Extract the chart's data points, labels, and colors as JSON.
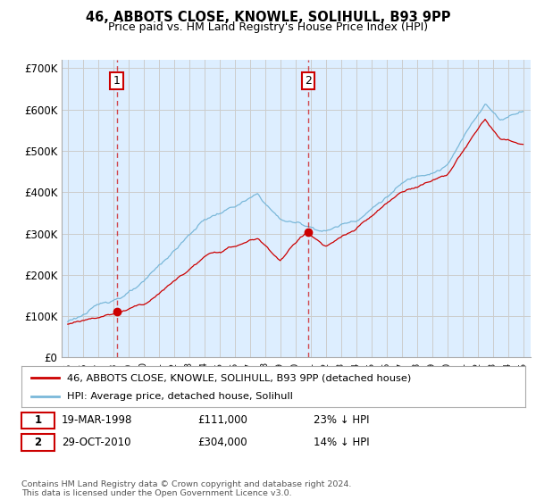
{
  "title": "46, ABBOTS CLOSE, KNOWLE, SOLIHULL, B93 9PP",
  "subtitle": "Price paid vs. HM Land Registry's House Price Index (HPI)",
  "ylim": [
    0,
    720000
  ],
  "yticks": [
    0,
    100000,
    200000,
    300000,
    400000,
    500000,
    600000,
    700000
  ],
  "ytick_labels": [
    "£0",
    "£100K",
    "£200K",
    "£300K",
    "£400K",
    "£500K",
    "£600K",
    "£700K"
  ],
  "hpi_color": "#7ab8d9",
  "price_color": "#cc0000",
  "bg_fill_color": "#ddeeff",
  "marker1_year": 1998.22,
  "marker2_year": 2010.83,
  "marker1_price": 111000,
  "marker2_price": 304000,
  "legend_label1": "46, ABBOTS CLOSE, KNOWLE, SOLIHULL, B93 9PP (detached house)",
  "legend_label2": "HPI: Average price, detached house, Solihull",
  "table_row1": [
    "1",
    "19-MAR-1998",
    "£111,000",
    "23% ↓ HPI"
  ],
  "table_row2": [
    "2",
    "29-OCT-2010",
    "£304,000",
    "14% ↓ HPI"
  ],
  "footnote": "Contains HM Land Registry data © Crown copyright and database right 2024.\nThis data is licensed under the Open Government Licence v3.0.",
  "bg_color": "#ffffff",
  "grid_color": "#cccccc"
}
